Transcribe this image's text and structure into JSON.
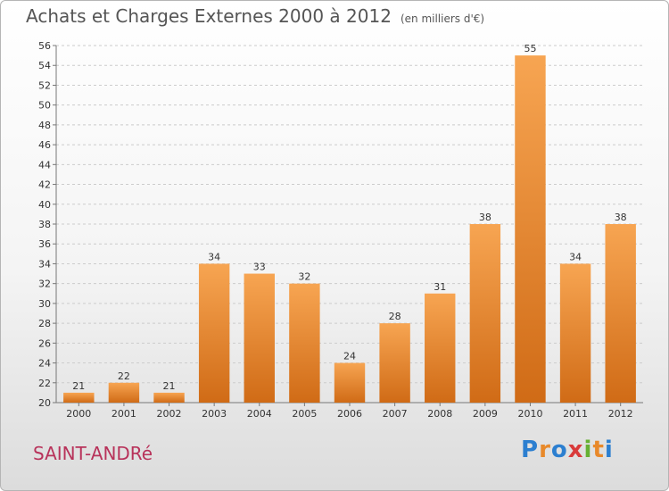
{
  "page": {
    "title": "Achats et Charges Externes 2000 à 2012",
    "subtitle": "(en milliers d'€)"
  },
  "commune": "SAINT-ANDRé",
  "logo": {
    "text": "Proxiti"
  },
  "colors": {
    "bar_top": "#f7a552",
    "bar_bottom": "#d06b16",
    "title": "#555555",
    "commune": "#b8325a",
    "grid": "#cccccc"
  },
  "chart_data": {
    "type": "bar",
    "title": "Achats et Charges Externes 2000 à 2012",
    "subtitle": "(en milliers d'€)",
    "xlabel": "",
    "ylabel": "",
    "categories": [
      "2000",
      "2001",
      "2002",
      "2003",
      "2004",
      "2005",
      "2006",
      "2007",
      "2008",
      "2009",
      "2010",
      "2011",
      "2012"
    ],
    "values": [
      21,
      22,
      21,
      34,
      33,
      32,
      24,
      28,
      31,
      38,
      55,
      34,
      38
    ],
    "ylim": [
      20,
      56
    ],
    "yticks": [
      20,
      22,
      24,
      26,
      28,
      30,
      32,
      34,
      36,
      38,
      40,
      42,
      44,
      46,
      48,
      50,
      52,
      54,
      56
    ],
    "grid": true,
    "data_labels": true
  }
}
